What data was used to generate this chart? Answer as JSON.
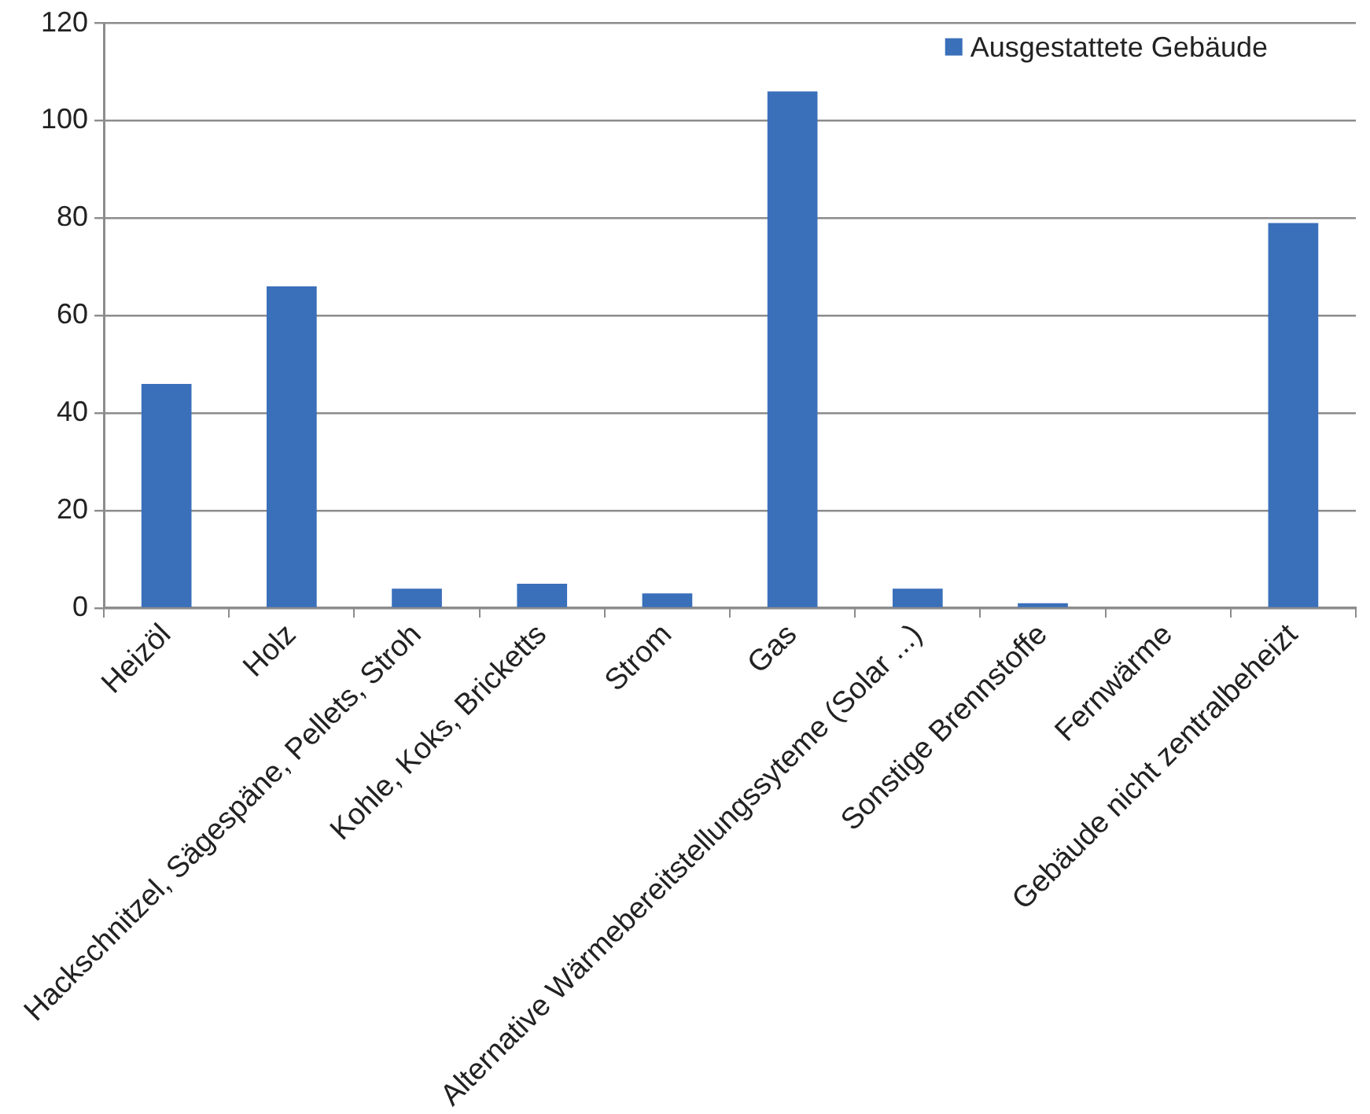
{
  "chart_data": {
    "type": "bar",
    "categories": [
      "Heizöl",
      "Holz",
      "Hackschnitzel, Sägespäne, Pellets, Stroh",
      "Kohle, Koks, Bricketts",
      "Strom",
      "Gas",
      "Alternative Wärmebereitstellungssyteme (Solar ...)",
      "Sonstige Brennstoffe",
      "Fernwärme",
      "Gebäude nicht zentralbeheizt"
    ],
    "series": [
      {
        "name": "Ausgestattete Gebäude",
        "color": "#3a6fba",
        "values": [
          46,
          66,
          4,
          5,
          3,
          106,
          4,
          1,
          0,
          79
        ]
      }
    ],
    "ylim": [
      0,
      120
    ],
    "yticks": [
      0,
      20,
      40,
      60,
      80,
      100,
      120
    ],
    "grid": "y",
    "legend": "top right"
  }
}
